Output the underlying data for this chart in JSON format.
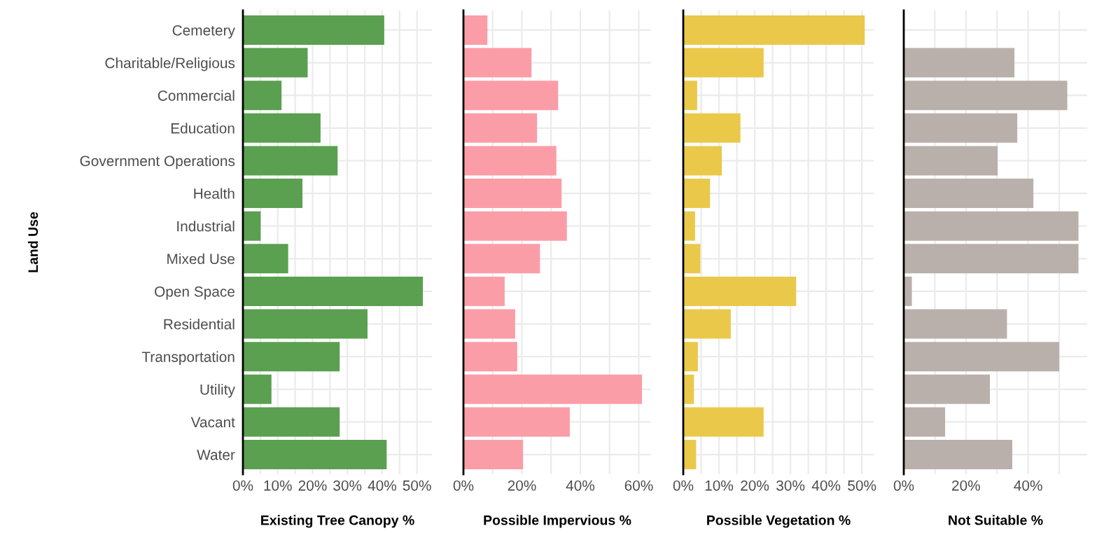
{
  "chart_data": [
    {
      "type": "bar",
      "orientation": "horizontal",
      "ylabel": "Land Use",
      "xlabel": "Existing Tree Canopy %",
      "categories": [
        "Cemetery",
        "Charitable/Religious",
        "Commercial",
        "Education",
        "Government Operations",
        "Health",
        "Industrial",
        "Mixed Use",
        "Open Space",
        "Residential",
        "Transportation",
        "Utility",
        "Vacant",
        "Water"
      ],
      "color": "#5aa050",
      "values": [
        40.6,
        18.6,
        11.1,
        22.3,
        27.2,
        17.1,
        5.1,
        13.0,
        51.7,
        35.8,
        27.8,
        8.2,
        27.8,
        41.3
      ],
      "xlim": [
        0,
        54.3
      ],
      "xticks": [
        {
          "value": 0,
          "label": "0%"
        },
        {
          "value": 5,
          "label": null
        },
        {
          "value": 10,
          "label": "10%"
        },
        {
          "value": 15,
          "label": null
        },
        {
          "value": 20,
          "label": "20%"
        },
        {
          "value": 25,
          "label": null
        },
        {
          "value": 30,
          "label": "30%"
        },
        {
          "value": 35,
          "label": null
        },
        {
          "value": 40,
          "label": "40%"
        },
        {
          "value": 45,
          "label": null
        },
        {
          "value": 50,
          "label": "50%"
        }
      ],
      "grid": true
    },
    {
      "type": "bar",
      "orientation": "horizontal",
      "xlabel": "Possible Impervious %",
      "color": "#fb9da7",
      "values": [
        8.2,
        23.3,
        32.4,
        25.2,
        31.8,
        33.6,
        35.4,
        26.2,
        14.1,
        17.7,
        18.4,
        61.1,
        36.4,
        20.4
      ],
      "xlim": [
        0,
        64.2
      ],
      "xticks": [
        {
          "value": 0,
          "label": "0%"
        },
        {
          "value": 10,
          "label": null
        },
        {
          "value": 20,
          "label": "20%"
        },
        {
          "value": 30,
          "label": null
        },
        {
          "value": 40,
          "label": "40%"
        },
        {
          "value": 50,
          "label": null
        },
        {
          "value": 60,
          "label": "60%"
        }
      ],
      "grid": true,
      "tick_labels": "x"
    },
    {
      "type": "bar",
      "orientation": "horizontal",
      "xlabel": "Possible Vegetation %",
      "color": "#eac94a",
      "values": [
        50.8,
        22.5,
        3.9,
        16.0,
        10.8,
        7.5,
        3.3,
        4.8,
        31.6,
        13.3,
        4.1,
        3.0,
        22.5,
        3.6
      ],
      "xlim": [
        0,
        53.3
      ],
      "xticks": [
        {
          "value": 0,
          "label": "0%"
        },
        {
          "value": 5,
          "label": null
        },
        {
          "value": 10,
          "label": "10%"
        },
        {
          "value": 15,
          "label": null
        },
        {
          "value": 20,
          "label": "20%"
        },
        {
          "value": 25,
          "label": null
        },
        {
          "value": 30,
          "label": "30%"
        },
        {
          "value": 35,
          "label": null
        },
        {
          "value": 40,
          "label": "40%"
        },
        {
          "value": 45,
          "label": null
        },
        {
          "value": 50,
          "label": "50%"
        }
      ],
      "grid": true,
      "tick_labels": "x"
    },
    {
      "type": "bar",
      "orientation": "horizontal",
      "xlabel": "Not Suitable %",
      "color": "#bab0ab",
      "values": [
        null,
        35.6,
        52.6,
        36.5,
        30.2,
        41.7,
        56.2,
        56.2,
        2.6,
        33.2,
        50.0,
        27.7,
        13.3,
        34.9
      ],
      "xlim": [
        0,
        59.0
      ],
      "xticks": [
        {
          "value": 0,
          "label": "0%"
        },
        {
          "value": 10,
          "label": null
        },
        {
          "value": 20,
          "label": "20%"
        },
        {
          "value": 30,
          "label": null
        },
        {
          "value": 40,
          "label": "40%"
        },
        {
          "value": 50,
          "label": null
        }
      ],
      "grid": true,
      "tick_labels": "x"
    }
  ]
}
